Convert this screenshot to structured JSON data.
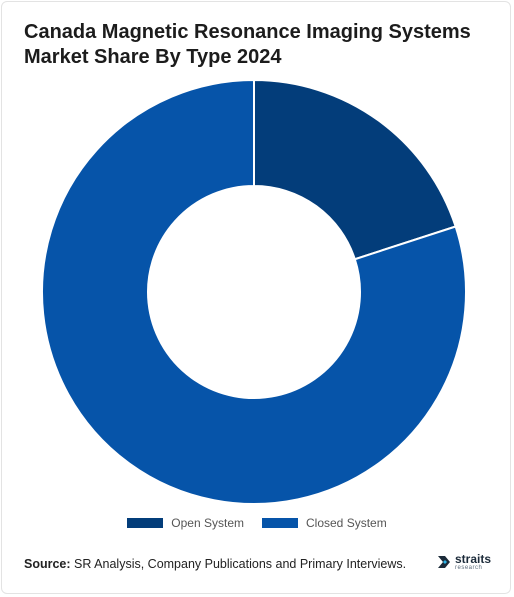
{
  "chart_data": {
    "type": "pie",
    "title": "Canada Magnetic Resonance Imaging Systems Market Share By Type 2024",
    "categories": [
      "Open System",
      "Closed System"
    ],
    "values": [
      20,
      80
    ],
    "colors": [
      "#033d7a",
      "#0654a9"
    ],
    "legend_position": "bottom",
    "donut": true
  },
  "source": {
    "label": "Source:",
    "text": "SR Analysis, Company Publications and Primary Interviews."
  },
  "logo": {
    "name": "straits",
    "sub": "research"
  }
}
